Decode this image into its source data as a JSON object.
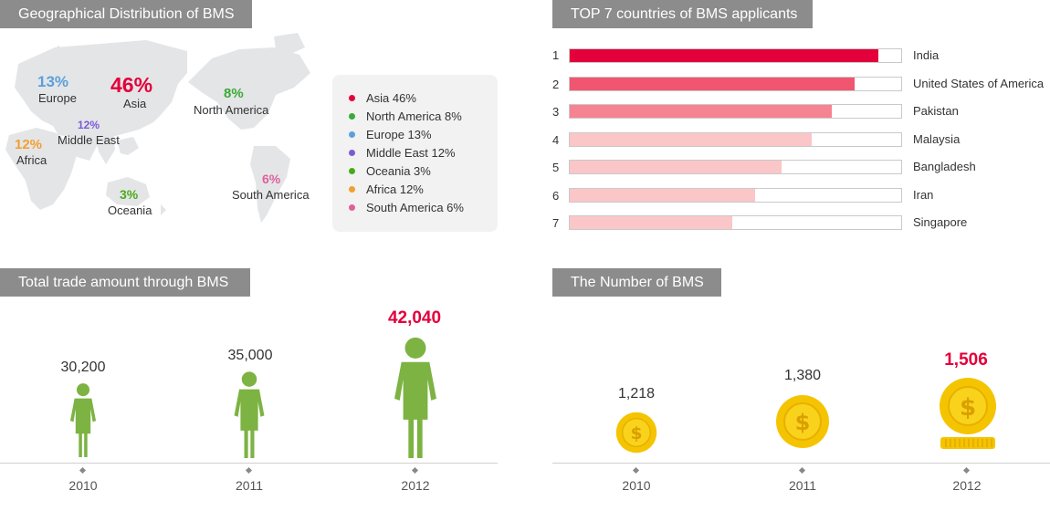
{
  "geo": {
    "title": "Geographical Distribution of BMS",
    "regions": [
      {
        "name": "Asia",
        "pct": "46%",
        "color": "#e4003a"
      },
      {
        "name": "North America",
        "pct": "8%",
        "color": "#3aaa35"
      },
      {
        "name": "Europe",
        "pct": "13%",
        "color": "#5aa0dc"
      },
      {
        "name": "Middle East",
        "pct": "12%",
        "color": "#7b5bd6"
      },
      {
        "name": "Oceania",
        "pct": "3%",
        "color": "#4aaa1a"
      },
      {
        "name": "Africa",
        "pct": "12%",
        "color": "#f0a030"
      },
      {
        "name": "South America",
        "pct": "6%",
        "color": "#e0609c"
      }
    ],
    "legend": [
      {
        "label": "Asia 46%",
        "color": "#e4003a"
      },
      {
        "label": "North America 8%",
        "color": "#3aaa35"
      },
      {
        "label": "Europe 13%",
        "color": "#5aa0dc"
      },
      {
        "label": "Middle East 12%",
        "color": "#7b5bd6"
      },
      {
        "label": "Oceania 3%",
        "color": "#4aaa1a"
      },
      {
        "label": "Africa 12%",
        "color": "#f0a030"
      },
      {
        "label": "South America 6%",
        "color": "#e0609c"
      }
    ]
  },
  "top7": {
    "title": "TOP 7 countries of BMS applicants",
    "max": 100,
    "items": [
      {
        "rank": "1",
        "country": "India",
        "value": 93,
        "color": "#e4003a"
      },
      {
        "rank": "2",
        "country": "United States of America",
        "value": 86,
        "color": "#f0566f"
      },
      {
        "rank": "3",
        "country": "Pakistan",
        "value": 79,
        "color": "#f58391"
      },
      {
        "rank": "4",
        "country": "Malaysia",
        "value": 73,
        "color": "#fbc6c8"
      },
      {
        "rank": "5",
        "country": "Bangladesh",
        "value": 64,
        "color": "#fbc6c8"
      },
      {
        "rank": "6",
        "country": "Iran",
        "value": 56,
        "color": "#fbc6c8"
      },
      {
        "rank": "7",
        "country": "Singapore",
        "value": 49,
        "color": "#fbc6c8"
      }
    ]
  },
  "trade": {
    "title": "Total trade amount through BMS",
    "years": [
      "2010",
      "2011",
      "2012"
    ],
    "values": [
      "30,200",
      "35,000",
      "42,040"
    ],
    "figure_color": "#7cb342"
  },
  "count": {
    "title": "The Number of BMS",
    "years": [
      "2010",
      "2011",
      "2012"
    ],
    "values": [
      "1,218",
      "1,380",
      "1,506"
    ],
    "coin_color": "#f5c400"
  },
  "chart_data": [
    {
      "type": "pie",
      "title": "Geographical Distribution of BMS",
      "categories": [
        "Asia",
        "North America",
        "Europe",
        "Middle East",
        "Oceania",
        "Africa",
        "South America"
      ],
      "values": [
        46,
        8,
        13,
        12,
        3,
        12,
        6
      ]
    },
    {
      "type": "bar",
      "title": "TOP 7 countries of BMS applicants",
      "categories": [
        "India",
        "United States of America",
        "Pakistan",
        "Malaysia",
        "Bangladesh",
        "Iran",
        "Singapore"
      ],
      "values": [
        93,
        86,
        79,
        73,
        64,
        56,
        49
      ]
    },
    {
      "type": "bar",
      "title": "Total trade amount through BMS",
      "categories": [
        "2010",
        "2011",
        "2012"
      ],
      "values": [
        30200,
        35000,
        42040
      ]
    },
    {
      "type": "bar",
      "title": "The Number of BMS",
      "categories": [
        "2010",
        "2011",
        "2012"
      ],
      "values": [
        1218,
        1380,
        1506
      ]
    }
  ]
}
